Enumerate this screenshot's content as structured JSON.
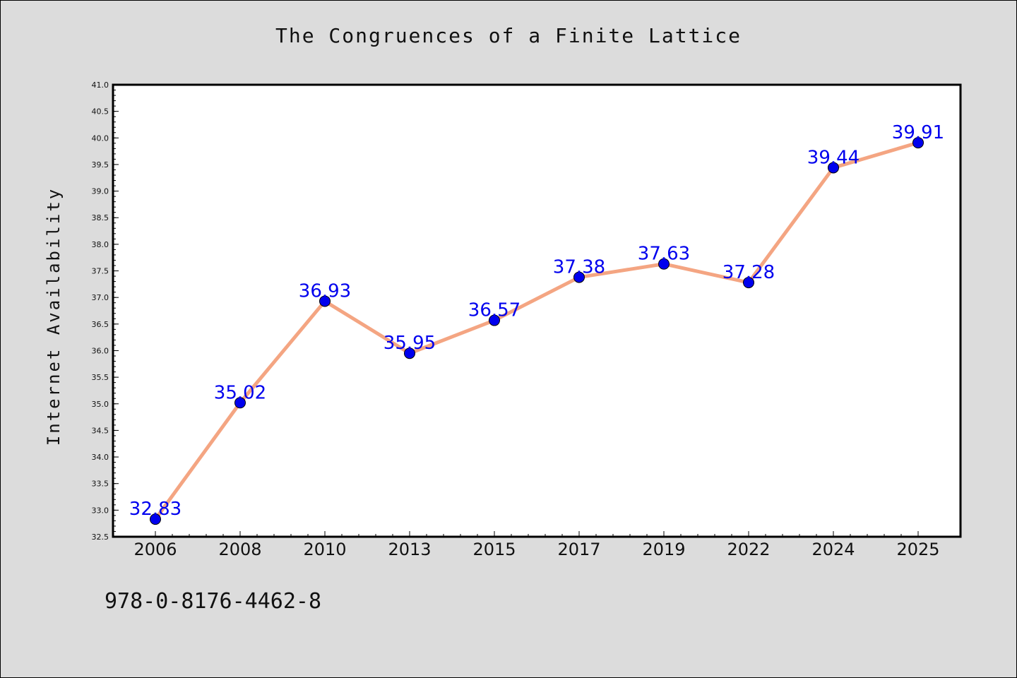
{
  "chart_data": {
    "type": "line",
    "title": "The Congruences of a Finite Lattice",
    "xlabel": "",
    "ylabel": "Internet Availability",
    "categories": [
      "2006",
      "2008",
      "2010",
      "2013",
      "2015",
      "2017",
      "2019",
      "2022",
      "2024",
      "2025"
    ],
    "values": [
      32.83,
      35.02,
      36.93,
      35.95,
      36.57,
      37.38,
      37.63,
      37.28,
      39.44,
      39.91
    ],
    "data_labels": [
      "32.83",
      "35.02",
      "36.93",
      "35.95",
      "36.57",
      "37.38",
      "37.63",
      "37.28",
      "39.44",
      "39.91"
    ],
    "ylim": [
      32.5,
      41.0
    ],
    "yticks": [
      "32.5",
      "33.0",
      "33.5",
      "34.0",
      "34.5",
      "35.0",
      "35.5",
      "36.0",
      "36.5",
      "37.0",
      "37.5",
      "38.0",
      "38.5",
      "39.0",
      "39.5",
      "40.0",
      "40.5",
      "41.0"
    ],
    "grid": false,
    "legend": "none",
    "colors": {
      "line": "#f4a582",
      "marker": "#0000ee",
      "label": "#0000ee",
      "plot_bg": "#ffffff",
      "page_bg": "#dcdcdc"
    }
  },
  "footer": {
    "isbn": "978-0-8176-4462-8"
  }
}
